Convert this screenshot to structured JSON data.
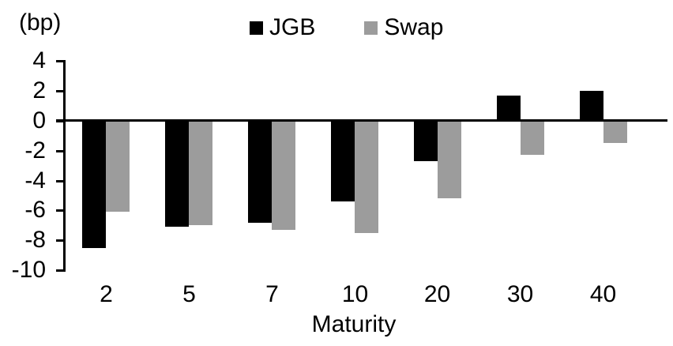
{
  "chart_data": {
    "type": "bar",
    "title": "",
    "unit_label": "(bp)",
    "xlabel": "Maturity",
    "ylabel": "(bp)",
    "categories": [
      "2",
      "5",
      "7",
      "10",
      "20",
      "30",
      "40"
    ],
    "series": [
      {
        "name": "JGB",
        "color": "#000000",
        "values": [
          -8.5,
          -7.1,
          -6.8,
          -5.4,
          -2.7,
          1.7,
          2.0
        ]
      },
      {
        "name": "Swap",
        "color": "#9C9C9C",
        "values": [
          -6.1,
          -7.0,
          -7.3,
          -7.5,
          -5.2,
          -2.3,
          -1.5
        ]
      }
    ],
    "yticks": [
      4,
      2,
      0,
      -2,
      -4,
      -6,
      -8,
      -10
    ],
    "ylim": [
      -10,
      4
    ],
    "grid": false,
    "legend_position": "top-center",
    "background": "#FFFFFF",
    "axis_color": "#000000"
  }
}
